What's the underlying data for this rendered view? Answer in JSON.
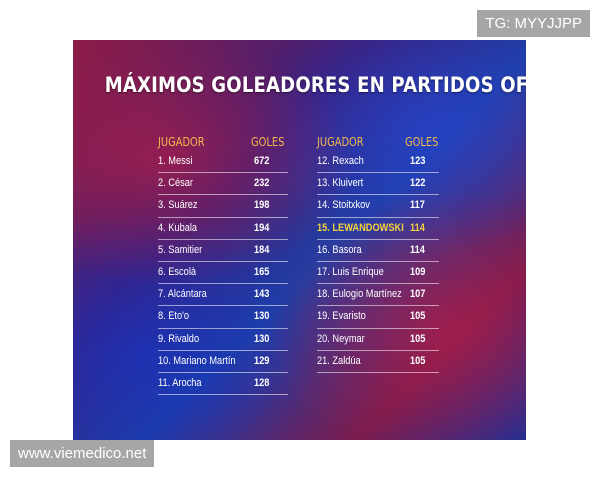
{
  "poster": {
    "title": "MÁXIMOS GOLEADORES EN PARTIDOS OFICIALES",
    "header_player": "JUGADOR",
    "header_goals": "GOLES",
    "left": [
      {
        "name": "1. Messi",
        "goals": "672"
      },
      {
        "name": "2. César",
        "goals": "232"
      },
      {
        "name": "3. Suárez",
        "goals": "198"
      },
      {
        "name": "4. Kubala",
        "goals": "194"
      },
      {
        "name": "5. Samitier",
        "goals": "184"
      },
      {
        "name": "6. Escolà",
        "goals": "165"
      },
      {
        "name": "7. Alcántara",
        "goals": "143"
      },
      {
        "name": "8. Eto'o",
        "goals": "130"
      },
      {
        "name": "9. Rivaldo",
        "goals": "130"
      },
      {
        "name": "10. Mariano Martín",
        "goals": "129"
      },
      {
        "name": "11. Arocha",
        "goals": "128"
      }
    ],
    "right": [
      {
        "name": "12. Rexach",
        "goals": "123"
      },
      {
        "name": "13. Kluivert",
        "goals": "122"
      },
      {
        "name": "14. Stoitxkov",
        "goals": "117"
      },
      {
        "name": "15. LEWANDOWSKI",
        "goals": "114",
        "highlight": true
      },
      {
        "name": "16. Basora",
        "goals": "114"
      },
      {
        "name": "17. Luis Enrique",
        "goals": "109"
      },
      {
        "name": "18. Eulogio Martínez",
        "goals": "107"
      },
      {
        "name": "19. Evaristo",
        "goals": "105"
      },
      {
        "name": "20. Neymar",
        "goals": "105"
      },
      {
        "name": "21. Zaldúa",
        "goals": "105"
      }
    ],
    "highlight_color": "#f5d23a",
    "header_color": "#f3b84a"
  },
  "watermarks": {
    "top": "TG: MYYJJPP",
    "bottom": "www.viemedico.net"
  }
}
